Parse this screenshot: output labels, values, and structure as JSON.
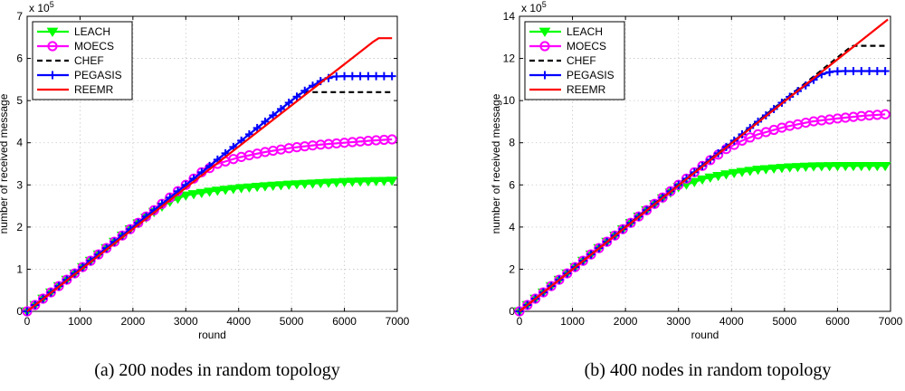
{
  "chart_data": [
    {
      "type": "line",
      "caption": "(a)  200 nodes in random topology",
      "xlabel": "round",
      "ylabel": "number of received message",
      "y_scale_label": "x 10",
      "y_scale_exponent": "5",
      "xlim": [
        0,
        7000
      ],
      "ylim": [
        0,
        7
      ],
      "xticks": [
        0,
        1000,
        2000,
        3000,
        4000,
        5000,
        6000,
        7000
      ],
      "yticks": [
        0,
        1,
        2,
        3,
        4,
        5,
        6,
        7
      ],
      "grid": true,
      "legend_position": "top-left",
      "series": [
        {
          "name": "LEACH",
          "color": "#00ff00",
          "style": "solid",
          "marker": "triangle-down",
          "x": [
            0,
            500,
            1000,
            1500,
            2000,
            2500,
            2700,
            3000,
            3500,
            4000,
            4500,
            5000,
            5500,
            6000,
            6500,
            6900
          ],
          "y": [
            0,
            0.5,
            1.0,
            1.5,
            2.0,
            2.45,
            2.6,
            2.75,
            2.85,
            2.92,
            2.97,
            3.01,
            3.04,
            3.07,
            3.09,
            3.1
          ]
        },
        {
          "name": "MOECS",
          "color": "#ff00ff",
          "style": "solid",
          "marker": "circle",
          "x": [
            0,
            500,
            1000,
            1500,
            2000,
            2500,
            3000,
            3300,
            3600,
            4000,
            4500,
            5000,
            5500,
            6000,
            6500,
            6900
          ],
          "y": [
            0,
            0.5,
            1.0,
            1.5,
            2.0,
            2.5,
            3.0,
            3.3,
            3.5,
            3.65,
            3.78,
            3.88,
            3.95,
            4.0,
            4.05,
            4.08
          ]
        },
        {
          "name": "CHEF",
          "color": "#000000",
          "style": "dashed",
          "marker": "none",
          "x": [
            0,
            5200,
            5250,
            6900
          ],
          "y": [
            0,
            5.2,
            5.2,
            5.2
          ]
        },
        {
          "name": "PEGASIS",
          "color": "#0000ff",
          "style": "solid",
          "marker": "plus",
          "x": [
            0,
            500,
            1000,
            1500,
            2000,
            2500,
            3000,
            3500,
            4000,
            4500,
            5000,
            5300,
            5600,
            5800,
            6000,
            6500,
            6900
          ],
          "y": [
            0,
            0.5,
            1.0,
            1.5,
            2.0,
            2.5,
            3.0,
            3.5,
            4.0,
            4.5,
            5.0,
            5.28,
            5.5,
            5.57,
            5.58,
            5.58,
            5.58
          ]
        },
        {
          "name": "REEMR",
          "color": "#ff0000",
          "style": "solid",
          "marker": "none",
          "x": [
            0,
            6550,
            6650,
            6900
          ],
          "y": [
            0,
            6.4,
            6.48,
            6.48
          ]
        }
      ]
    },
    {
      "type": "line",
      "caption": "(b)  400 nodes in random topology",
      "xlabel": "round",
      "ylabel": "number of received message",
      "y_scale_label": "x 10",
      "y_scale_exponent": "5",
      "xlim": [
        0,
        7000
      ],
      "ylim": [
        0,
        14
      ],
      "xticks": [
        0,
        1000,
        2000,
        3000,
        4000,
        5000,
        6000,
        7000
      ],
      "yticks": [
        0,
        2,
        4,
        6,
        8,
        10,
        12,
        14
      ],
      "grid": true,
      "legend_position": "top-left",
      "series": [
        {
          "name": "LEACH",
          "color": "#00ff00",
          "style": "solid",
          "marker": "triangle-down",
          "x": [
            0,
            500,
            1000,
            1500,
            2000,
            2500,
            2800,
            3000,
            3500,
            4000,
            4500,
            5000,
            5500,
            6000,
            6500,
            6900
          ],
          "y": [
            0,
            1.0,
            2.0,
            3.0,
            4.0,
            5.0,
            5.55,
            5.9,
            6.3,
            6.55,
            6.72,
            6.82,
            6.88,
            6.9,
            6.9,
            6.9
          ]
        },
        {
          "name": "MOECS",
          "color": "#ff00ff",
          "style": "solid",
          "marker": "circle",
          "x": [
            0,
            500,
            1000,
            1500,
            2000,
            2500,
            3000,
            3500,
            3900,
            4200,
            4500,
            5000,
            5500,
            6000,
            6500,
            6900
          ],
          "y": [
            0,
            1.0,
            2.0,
            3.0,
            4.0,
            5.0,
            6.0,
            7.0,
            7.7,
            8.1,
            8.4,
            8.75,
            9.0,
            9.15,
            9.28,
            9.35
          ]
        },
        {
          "name": "CHEF",
          "color": "#000000",
          "style": "dashed",
          "marker": "none",
          "x": [
            0,
            6250,
            6300,
            6900
          ],
          "y": [
            0,
            12.55,
            12.6,
            12.6
          ]
        },
        {
          "name": "PEGASIS",
          "color": "#0000ff",
          "style": "solid",
          "marker": "plus",
          "x": [
            0,
            500,
            1000,
            1500,
            2000,
            2500,
            3000,
            3500,
            4000,
            4500,
            5000,
            5500,
            5700,
            5900,
            6100,
            6500,
            6900
          ],
          "y": [
            0,
            1.0,
            2.0,
            3.0,
            4.0,
            5.0,
            6.0,
            7.0,
            8.0,
            9.0,
            10.0,
            10.9,
            11.25,
            11.38,
            11.4,
            11.4,
            11.4
          ]
        },
        {
          "name": "REEMR",
          "color": "#ff0000",
          "style": "solid",
          "marker": "none",
          "x": [
            0,
            6950
          ],
          "y": [
            0,
            13.85
          ]
        }
      ]
    }
  ]
}
